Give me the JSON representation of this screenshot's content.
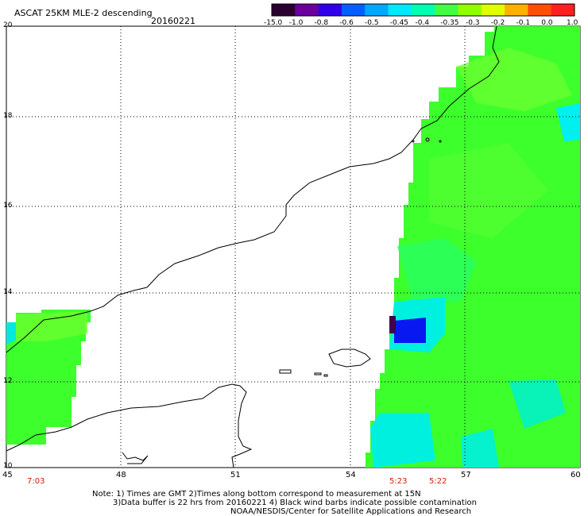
{
  "header": {
    "title": "ASCAT 25KM MLE-2 descending",
    "date": "20160221"
  },
  "colorbar": {
    "labels": [
      "-15.0",
      "-1.0",
      "-0.8",
      "-0.6",
      "-0.5",
      "-0.45",
      "-0.4",
      "-0.35",
      "-0.3",
      "-0.2",
      "-0.1",
      "0.0",
      "1.0"
    ],
    "colors": [
      "#2a0030",
      "#6a00a0",
      "#3000e8",
      "#0060ff",
      "#00a8ff",
      "#00e8ff",
      "#00ffb0",
      "#40ff40",
      "#90ff00",
      "#e0ff00",
      "#ffb000",
      "#ff5000",
      "#ff2020"
    ]
  },
  "axes": {
    "lon_labels": [
      "45",
      "48",
      "51",
      "54",
      "57",
      "60"
    ],
    "lat_labels": [
      "20",
      "18",
      "16",
      "14",
      "12",
      "10"
    ]
  },
  "pass_times": [
    "7:03",
    "5:23",
    "5:22"
  ],
  "notes": {
    "line1": "Note: 1) Times are GMT 2)Times along bottom correspond to measurement at 15N",
    "line2": "3)Data buffer is 22 hrs from 20160221 4) Black wind barbs indicate possible contamination",
    "line3": "NOAA/NESDIS/Center for Satellite Applications and Research"
  },
  "swath_colors": {
    "green": "#3cff2c",
    "light_green": "#6cff30",
    "cyan": "#00f0e0",
    "blue": "#0818f0",
    "dark_purple": "#400050"
  }
}
